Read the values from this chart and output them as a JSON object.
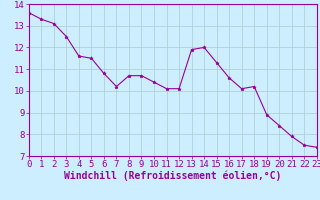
{
  "x": [
    0,
    1,
    2,
    3,
    4,
    5,
    6,
    7,
    8,
    9,
    10,
    11,
    12,
    13,
    14,
    15,
    16,
    17,
    18,
    19,
    20,
    21,
    22,
    23
  ],
  "y": [
    13.6,
    13.3,
    13.1,
    12.5,
    11.6,
    11.5,
    10.8,
    10.2,
    10.7,
    10.7,
    10.4,
    10.1,
    10.1,
    11.9,
    12.0,
    11.3,
    10.6,
    10.1,
    10.2,
    8.9,
    8.4,
    7.9,
    7.5,
    7.4
  ],
  "line_color": "#990099",
  "marker": "*",
  "bg_color": "#cceeff",
  "grid_color": "#aacccc",
  "xlabel": "Windchill (Refroidissement éolien,°C)",
  "ylim": [
    7,
    14
  ],
  "xlim": [
    0,
    23
  ],
  "yticks": [
    7,
    8,
    9,
    10,
    11,
    12,
    13,
    14
  ],
  "xticks": [
    0,
    1,
    2,
    3,
    4,
    5,
    6,
    7,
    8,
    9,
    10,
    11,
    12,
    13,
    14,
    15,
    16,
    17,
    18,
    19,
    20,
    21,
    22,
    23
  ],
  "tick_color": "#990099",
  "label_color": "#990099",
  "axis_line_color": "#990099",
  "font_size": 6.5,
  "xlabel_fontsize": 7,
  "linewidth": 0.8,
  "markersize": 2.5
}
